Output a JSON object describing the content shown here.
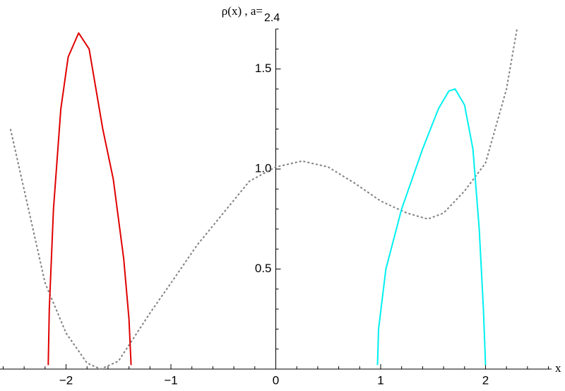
{
  "chart_data": {
    "type": "line",
    "title": "ρ(x) , a=",
    "parameter_label": "2.4",
    "x_label": "x",
    "xlim": [
      -2.63,
      2.63
    ],
    "ylim": [
      0,
      1.7
    ],
    "xticks": [
      {
        "value": -2,
        "label": "−2"
      },
      {
        "value": -1,
        "label": "−1"
      },
      0,
      1,
      2
    ],
    "yticks": [
      0.5,
      {
        "value": 1.0,
        "label": "1.0"
      },
      1.5
    ],
    "xminorticks": [
      -2.6,
      -2.4,
      -2.2,
      -1.8,
      -1.6,
      -1.4,
      -1.2,
      -0.8,
      -0.6,
      -0.4,
      -0.2,
      0.2,
      0.4,
      0.6,
      0.8,
      1.2,
      1.4,
      1.6,
      1.8,
      2.2,
      2.4,
      2.6
    ],
    "yminorticks": [
      0.1,
      0.2,
      0.3,
      0.4,
      0.6,
      0.7,
      0.8,
      0.9,
      1.1,
      1.2,
      1.3,
      1.4,
      1.6,
      1.7
    ],
    "series": [
      {
        "color": "#808080",
        "dashed": true,
        "x": [
          -2.53,
          -2.2,
          -2.0,
          -1.8,
          -1.67,
          -1.5,
          -1.2,
          -1.0,
          -0.75,
          -0.5,
          -0.25,
          0,
          0.25,
          0.5,
          0.75,
          1.0,
          1.25,
          1.45,
          1.6,
          1.8,
          2.0,
          2.2,
          2.3
        ],
        "values": [
          1.2,
          0.43,
          0.18,
          0.03,
          0.0,
          0.04,
          0.28,
          0.43,
          0.62,
          0.78,
          0.94,
          1.01,
          1.04,
          1.01,
          0.93,
          0.84,
          0.78,
          0.75,
          0.78,
          0.89,
          1.03,
          1.4,
          1.7
        ]
      },
      {
        "color": "#e00000",
        "dashed": false,
        "x": [
          -2.17,
          -2.16,
          -2.12,
          -2.05,
          -1.98,
          -1.88,
          -1.78,
          -1.65,
          -1.55,
          -1.45,
          -1.4,
          -1.38
        ],
        "values": [
          0.02,
          0.3,
          0.8,
          1.3,
          1.56,
          1.68,
          1.6,
          1.2,
          0.95,
          0.55,
          0.25,
          0.02
        ]
      },
      {
        "color": "#00f0f0",
        "dashed": false,
        "x": [
          0.97,
          0.98,
          1.05,
          1.2,
          1.4,
          1.55,
          1.65,
          1.71,
          1.8,
          1.88,
          1.94,
          1.98,
          2.0
        ],
        "values": [
          0.02,
          0.2,
          0.5,
          0.8,
          1.1,
          1.3,
          1.39,
          1.4,
          1.32,
          1.1,
          0.7,
          0.3,
          0.02
        ]
      }
    ]
  }
}
